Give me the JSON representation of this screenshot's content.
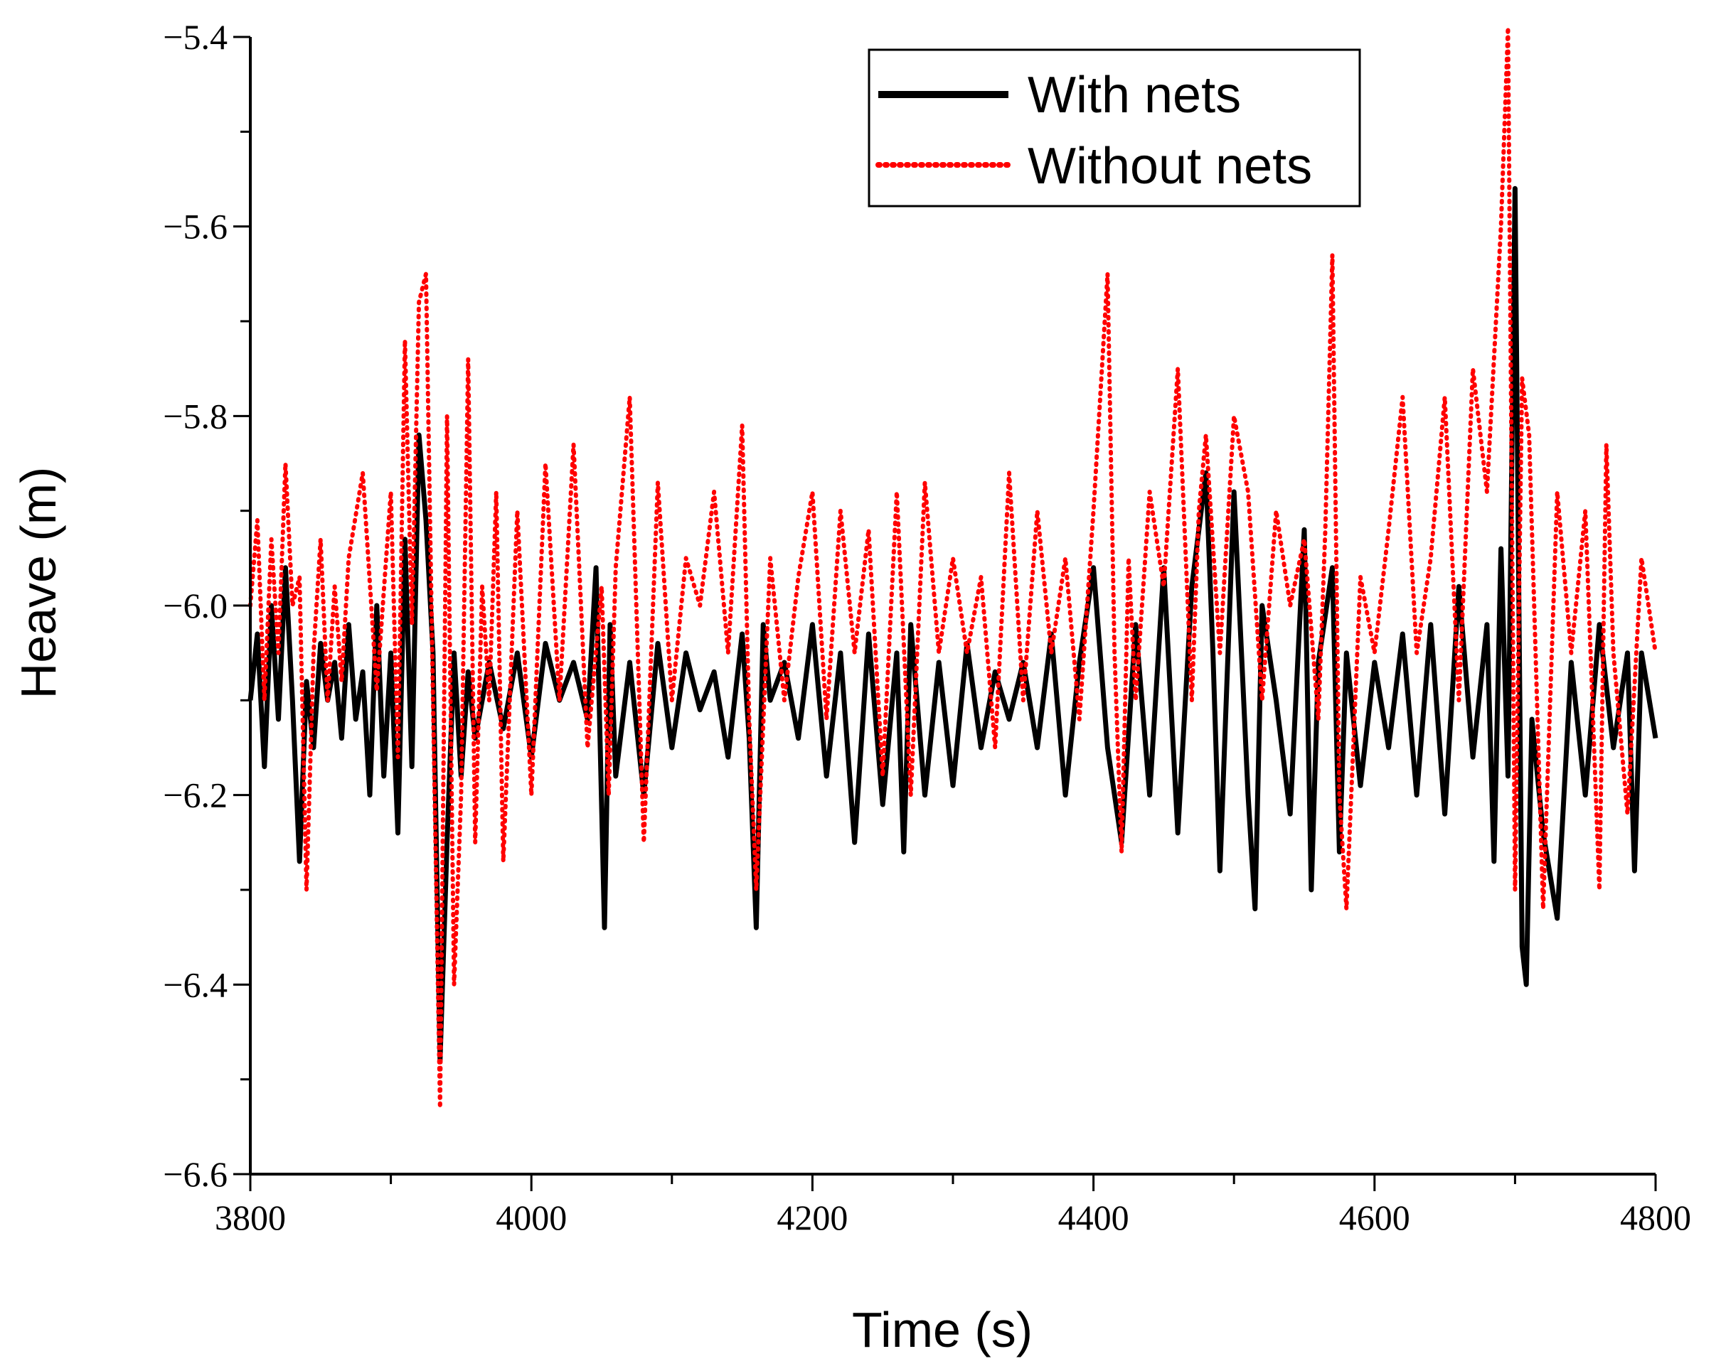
{
  "chart_data": {
    "type": "line",
    "title": "",
    "xlabel": "Time (s)",
    "ylabel": "Heave (m)",
    "xlim": [
      3800,
      4800
    ],
    "ylim": [
      -6.6,
      -5.4
    ],
    "xticks": [
      3800,
      4000,
      4200,
      4400,
      4600,
      4800
    ],
    "xtick_labels": [
      "3800",
      "4000",
      "4200",
      "4400",
      "4600",
      "4800"
    ],
    "yticks": [
      -6.6,
      -6.4,
      -6.2,
      -6.0,
      -5.8,
      -5.6,
      -5.4
    ],
    "ytick_labels": [
      "−6.6",
      "−6.4",
      "−6.2",
      "−6.0",
      "−5.8",
      "−5.6",
      "−5.4"
    ],
    "grid": false,
    "legend_position": "top-right",
    "series": [
      {
        "name": "With nets",
        "color": "#000000",
        "style": "solid",
        "x": [
          3800,
          3805,
          3810,
          3815,
          3820,
          3825,
          3830,
          3835,
          3840,
          3845,
          3850,
          3855,
          3860,
          3865,
          3870,
          3875,
          3880,
          3885,
          3890,
          3895,
          3900,
          3905,
          3910,
          3915,
          3920,
          3925,
          3930,
          3935,
          3940,
          3945,
          3950,
          3955,
          3960,
          3970,
          3980,
          3990,
          4000,
          4010,
          4020,
          4030,
          4040,
          4046,
          4052,
          4056,
          4060,
          4070,
          4080,
          4090,
          4100,
          4110,
          4120,
          4130,
          4140,
          4150,
          4155,
          4160,
          4165,
          4170,
          4180,
          4190,
          4200,
          4210,
          4220,
          4230,
          4240,
          4250,
          4260,
          4265,
          4270,
          4280,
          4290,
          4300,
          4310,
          4320,
          4330,
          4340,
          4350,
          4360,
          4370,
          4380,
          4390,
          4400,
          4410,
          4420,
          4430,
          4440,
          4450,
          4460,
          4470,
          4480,
          4485,
          4490,
          4500,
          4510,
          4515,
          4520,
          4530,
          4540,
          4550,
          4555,
          4560,
          4570,
          4575,
          4580,
          4590,
          4600,
          4610,
          4620,
          4630,
          4640,
          4650,
          4660,
          4670,
          4680,
          4685,
          4690,
          4695,
          4700,
          4705,
          4708,
          4712,
          4720,
          4730,
          4740,
          4750,
          4760,
          4770,
          4780,
          4785,
          4790,
          4800
        ],
        "values": [
          -6.1,
          -6.03,
          -6.17,
          -6.0,
          -6.12,
          -5.96,
          -6.1,
          -6.27,
          -6.08,
          -6.15,
          -6.04,
          -6.1,
          -6.06,
          -6.14,
          -6.02,
          -6.12,
          -6.07,
          -6.2,
          -6.0,
          -6.18,
          -6.05,
          -6.24,
          -5.93,
          -6.17,
          -5.82,
          -5.91,
          -6.05,
          -6.48,
          -6.25,
          -6.05,
          -6.18,
          -6.07,
          -6.14,
          -6.06,
          -6.13,
          -6.05,
          -6.16,
          -6.04,
          -6.1,
          -6.06,
          -6.12,
          -5.96,
          -6.34,
          -6.02,
          -6.18,
          -6.06,
          -6.2,
          -6.04,
          -6.15,
          -6.05,
          -6.11,
          -6.07,
          -6.16,
          -6.03,
          -6.14,
          -6.34,
          -6.02,
          -6.1,
          -6.06,
          -6.14,
          -6.02,
          -6.18,
          -6.05,
          -6.25,
          -6.03,
          -6.21,
          -6.05,
          -6.26,
          -6.02,
          -6.2,
          -6.06,
          -6.19,
          -6.04,
          -6.15,
          -6.07,
          -6.12,
          -6.06,
          -6.15,
          -6.03,
          -6.2,
          -6.06,
          -5.96,
          -6.15,
          -6.25,
          -6.02,
          -6.2,
          -5.96,
          -6.24,
          -5.98,
          -5.86,
          -6.05,
          -6.28,
          -5.88,
          -6.2,
          -6.32,
          -6.0,
          -6.1,
          -6.22,
          -5.92,
          -6.3,
          -6.06,
          -5.96,
          -6.26,
          -6.05,
          -6.19,
          -6.06,
          -6.15,
          -6.03,
          -6.2,
          -6.02,
          -6.22,
          -5.98,
          -6.16,
          -6.02,
          -6.27,
          -5.94,
          -6.18,
          -5.56,
          -6.36,
          -6.4,
          -6.12,
          -6.24,
          -6.33,
          -6.06,
          -6.2,
          -6.02,
          -6.15,
          -6.05,
          -6.28,
          -6.05,
          -6.14
        ]
      },
      {
        "name": "Without nets",
        "color": "#ff0000",
        "style": "dotted",
        "x": [
          3800,
          3805,
          3810,
          3815,
          3820,
          3825,
          3830,
          3835,
          3840,
          3845,
          3850,
          3855,
          3860,
          3865,
          3870,
          3880,
          3890,
          3900,
          3905,
          3910,
          3915,
          3920,
          3925,
          3930,
          3935,
          3940,
          3945,
          3950,
          3955,
          3960,
          3965,
          3970,
          3975,
          3980,
          3990,
          4000,
          4010,
          4020,
          4030,
          4040,
          4050,
          4055,
          4060,
          4070,
          4080,
          4090,
          4100,
          4110,
          4120,
          4130,
          4140,
          4150,
          4155,
          4160,
          4170,
          4180,
          4190,
          4200,
          4210,
          4220,
          4230,
          4240,
          4250,
          4260,
          4270,
          4280,
          4290,
          4300,
          4310,
          4320,
          4330,
          4340,
          4350,
          4360,
          4370,
          4380,
          4390,
          4400,
          4410,
          4415,
          4420,
          4425,
          4430,
          4440,
          4450,
          4460,
          4470,
          4475,
          4480,
          4490,
          4500,
          4510,
          4520,
          4530,
          4540,
          4550,
          4560,
          4565,
          4570,
          4575,
          4580,
          4590,
          4600,
          4610,
          4620,
          4630,
          4640,
          4650,
          4660,
          4670,
          4680,
          4690,
          4695,
          4700,
          4705,
          4710,
          4720,
          4730,
          4740,
          4750,
          4760,
          4765,
          4770,
          4780,
          4790,
          4800
        ],
        "values": [
          -6.0,
          -5.91,
          -6.1,
          -5.93,
          -6.05,
          -5.85,
          -6.0,
          -5.97,
          -6.3,
          -6.05,
          -5.93,
          -6.1,
          -5.98,
          -6.08,
          -5.95,
          -5.86,
          -6.09,
          -5.88,
          -6.16,
          -5.72,
          -6.02,
          -5.68,
          -5.65,
          -6.1,
          -6.53,
          -5.8,
          -6.4,
          -6.2,
          -5.74,
          -6.25,
          -5.98,
          -6.1,
          -5.88,
          -6.27,
          -5.9,
          -6.2,
          -5.85,
          -6.1,
          -5.83,
          -6.15,
          -5.98,
          -6.2,
          -5.96,
          -5.78,
          -6.25,
          -5.87,
          -6.1,
          -5.95,
          -6.0,
          -5.88,
          -6.05,
          -5.81,
          -6.12,
          -6.3,
          -5.95,
          -6.1,
          -5.97,
          -5.88,
          -6.12,
          -5.9,
          -6.05,
          -5.92,
          -6.18,
          -5.88,
          -6.2,
          -5.87,
          -6.05,
          -5.95,
          -6.05,
          -5.97,
          -6.15,
          -5.86,
          -6.1,
          -5.9,
          -6.05,
          -5.95,
          -6.12,
          -5.9,
          -5.65,
          -6.05,
          -6.26,
          -5.95,
          -6.1,
          -5.88,
          -5.98,
          -5.75,
          -6.1,
          -5.9,
          -5.82,
          -6.05,
          -5.8,
          -5.88,
          -6.1,
          -5.9,
          -6.0,
          -5.93,
          -6.12,
          -5.92,
          -5.63,
          -6.2,
          -6.32,
          -5.97,
          -6.05,
          -5.92,
          -5.78,
          -6.05,
          -5.95,
          -5.78,
          -6.1,
          -5.75,
          -5.88,
          -5.6,
          -5.39,
          -6.3,
          -5.76,
          -5.82,
          -6.32,
          -5.88,
          -6.05,
          -5.9,
          -6.3,
          -5.83,
          -6.05,
          -6.22,
          -5.95,
          -6.05
        ]
      }
    ]
  }
}
